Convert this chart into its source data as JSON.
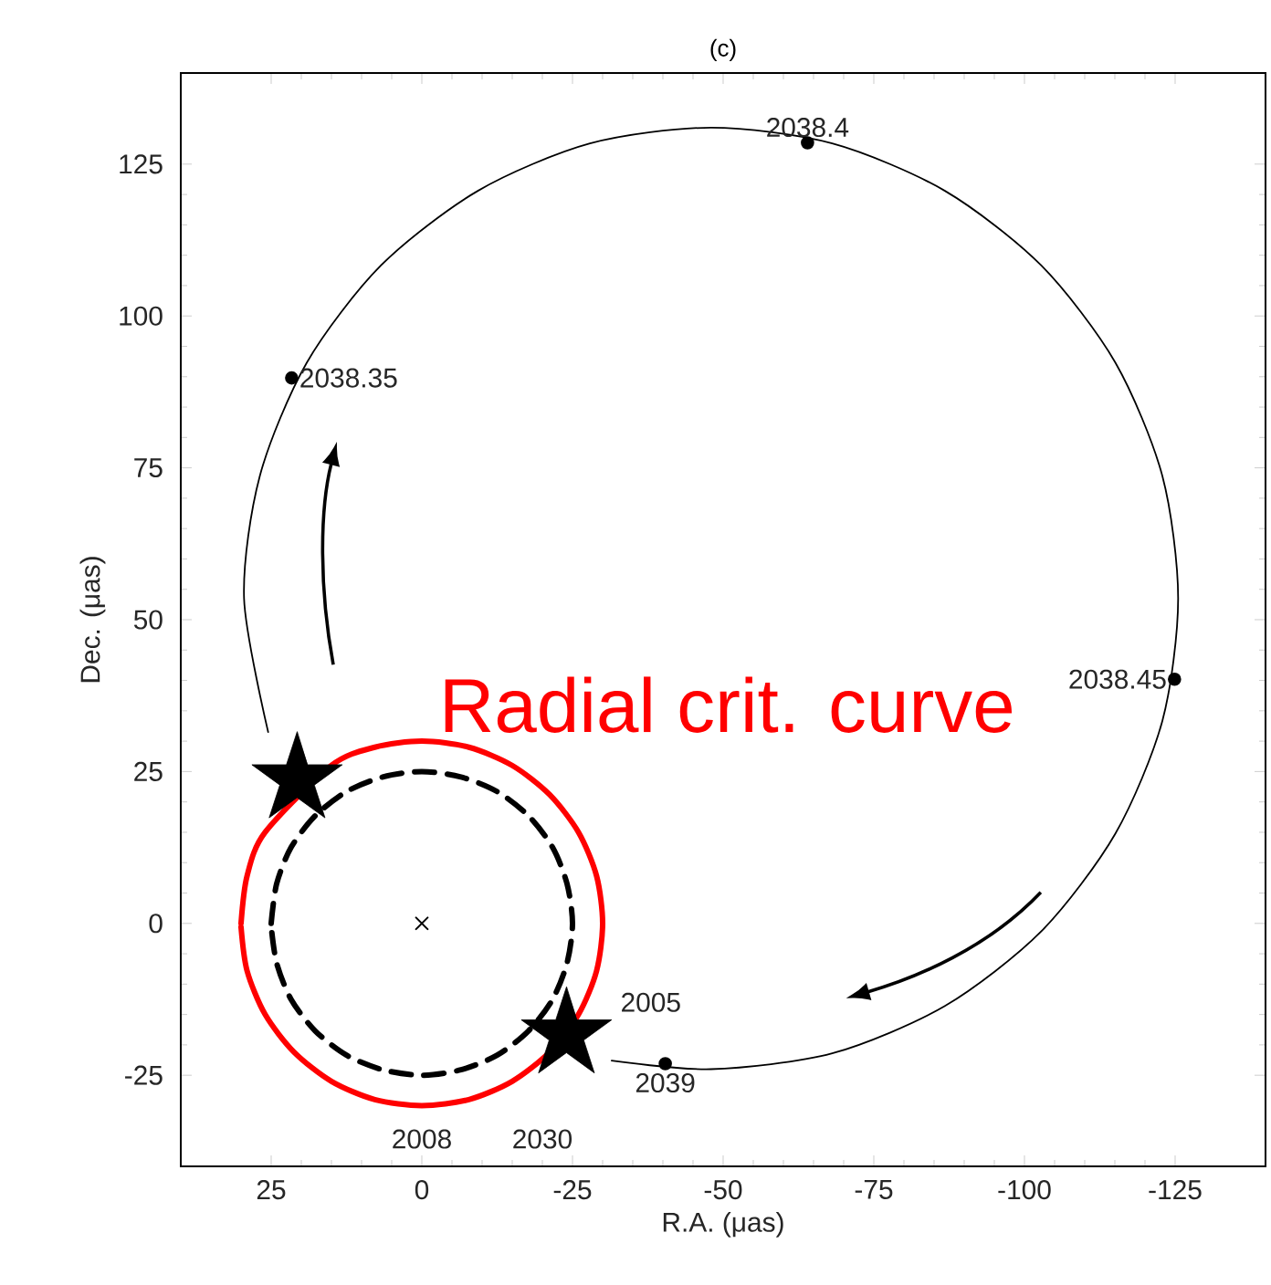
{
  "chart_data": {
    "type": "line",
    "title": "(c)",
    "xlabel": "R.A. (μas)",
    "ylabel": "Dec. (μas)",
    "xlim": [
      40,
      -140
    ],
    "ylim": [
      -40,
      140
    ],
    "xticks": [
      25,
      0,
      -25,
      -50,
      -75,
      -100,
      -125
    ],
    "yticks": [
      -25,
      0,
      25,
      50,
      75,
      100,
      125
    ],
    "grid": false,
    "series": [
      {
        "color": "#000000",
        "line_style": "solid",
        "marker": "none",
        "x": [
          25.5,
          29.5,
          26.9,
          19.1,
          6.8,
          -9.3,
          -27.9,
          -48,
          -68.1,
          -86.8,
          -102.8,
          -115.1,
          -122.9,
          -125.5,
          -122.9,
          -115.1,
          -102.8,
          -86.8,
          -68.1,
          -48,
          -31.5
        ],
        "values": [
          31.5,
          53.5,
          73.6,
          92.3,
          108.3,
          120.6,
          128.4,
          131,
          128.4,
          120.6,
          108.3,
          92.3,
          73.6,
          53.5,
          33.4,
          14.8,
          -1.3,
          -13.6,
          -21.4,
          -24,
          -22.6
        ]
      },
      {
        "name": "Radial crit. curve",
        "color": "#ff0000",
        "line_style": "solid",
        "marker": "none",
        "x": [
          30,
          29,
          26,
          21.2,
          15,
          7.8,
          0,
          -7.8,
          -15,
          -21.2,
          -26,
          -29,
          -30,
          -29,
          -26,
          -21.2,
          -15,
          -7.8,
          0,
          7.8,
          15,
          21.2,
          26,
          29,
          30
        ],
        "values": [
          0,
          7.8,
          15,
          null,
          26,
          29,
          30,
          29,
          26,
          21.2,
          15,
          7.8,
          0,
          -7.8,
          -15,
          -21.2,
          -26,
          -29,
          -30,
          -29,
          -26,
          -21.2,
          -15,
          -7.8,
          -0.6
        ]
      },
      {
        "color": "#000000",
        "line_style": "dashed",
        "marker": "none",
        "x": [
          25,
          24.1,
          21.7,
          17.7,
          12.5,
          6.5,
          0,
          -6.5,
          -12.5,
          -17.7,
          -21.7,
          -24.1,
          -25,
          -24.1,
          -21.7,
          -17.7,
          -12.5,
          -6.5,
          0,
          6.5,
          12.5,
          17.7,
          21.7,
          24.1,
          25
        ],
        "values": [
          0,
          6.5,
          12.5,
          17.7,
          21.7,
          24.1,
          25,
          24.1,
          21.7,
          17.7,
          12.5,
          6.5,
          0,
          -6.5,
          -12.5,
          -17.7,
          -21.7,
          -24.1,
          -25,
          -24.1,
          -21.7,
          -17.7,
          -12.5,
          -6.5,
          -0.5
        ]
      },
      {
        "type": "scatter",
        "color": "#000000",
        "marker": "circle",
        "x": [
          21.6,
          -64,
          -124.9,
          -40.4
        ],
        "values": [
          89.8,
          128.5,
          40.2,
          -23.1
        ]
      },
      {
        "type": "scatter",
        "color": "#000000",
        "marker": "cross",
        "x": [
          0
        ],
        "values": [
          0
        ]
      },
      {
        "type": "scatter",
        "color": "#000000",
        "marker": "star",
        "x": [
          20.7,
          -24
        ],
        "values": [
          23.7,
          -18.3
        ]
      }
    ],
    "annotations": [
      {
        "text": "2038.35",
        "x": 21.6,
        "y": 89.8
      },
      {
        "text": "2038.4",
        "x": -64,
        "y": 128.5
      },
      {
        "text": "2038.45",
        "x": -124.9,
        "y": 40.2
      },
      {
        "text": "2039",
        "x": -40.4,
        "y": -23.1
      },
      "2005",
      "2030",
      "2008"
    ]
  }
}
